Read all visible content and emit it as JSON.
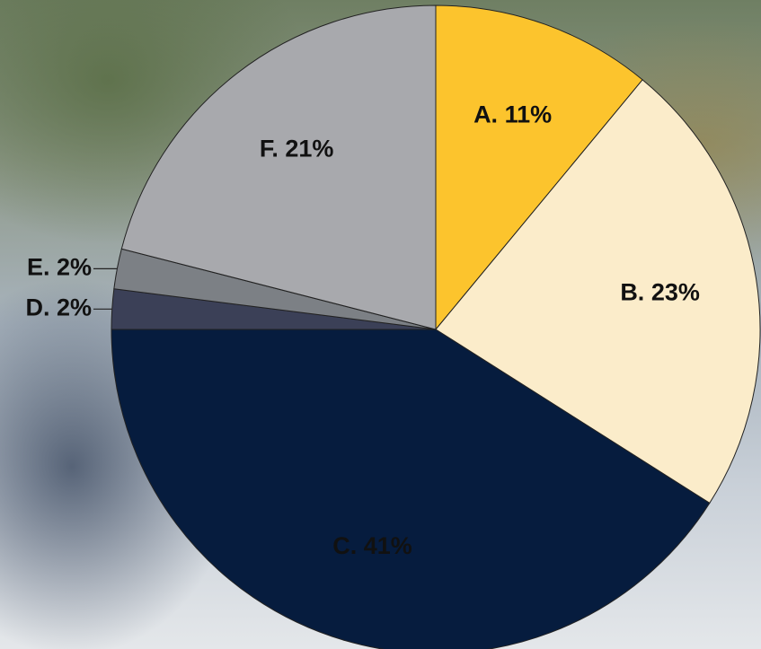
{
  "chart_data": {
    "type": "pie",
    "values": [
      11,
      23,
      41,
      2,
      2,
      21
    ],
    "value_labels": [
      "A. 11%",
      "B. 23%",
      "C. 41%",
      "D. 2%",
      "E. 2%",
      "F. 21%"
    ],
    "colors": [
      "#fcc42d",
      "#fbecca",
      "#061c3e",
      "#3b4057",
      "#7c8085",
      "#a8a9ad"
    ]
  }
}
